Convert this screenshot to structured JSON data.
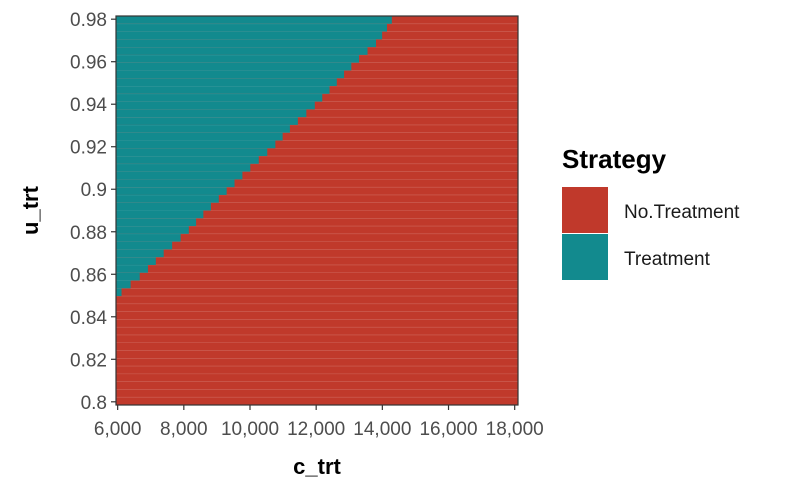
{
  "chart_data": {
    "type": "heatmap",
    "xlabel": "c_trt",
    "ylabel": "u_trt",
    "xlim": [
      6000,
      18000
    ],
    "ylim": [
      0.8,
      0.98
    ],
    "x_ticks": [
      {
        "value": 6000,
        "label": "6,000"
      },
      {
        "value": 8000,
        "label": "8,000"
      },
      {
        "value": 10000,
        "label": "10,000"
      },
      {
        "value": 12000,
        "label": "12,000"
      },
      {
        "value": 14000,
        "label": "14,000"
      },
      {
        "value": 16000,
        "label": "16,000"
      },
      {
        "value": 18000,
        "label": "18,000"
      }
    ],
    "y_ticks": [
      {
        "value": 0.8,
        "label": "0.8"
      },
      {
        "value": 0.82,
        "label": "0.82"
      },
      {
        "value": 0.84,
        "label": "0.84"
      },
      {
        "value": 0.86,
        "label": "0.86"
      },
      {
        "value": 0.88,
        "label": "0.88"
      },
      {
        "value": 0.9,
        "label": "0.9"
      },
      {
        "value": 0.92,
        "label": "0.92"
      },
      {
        "value": 0.94,
        "label": "0.94"
      },
      {
        "value": 0.96,
        "label": "0.96"
      },
      {
        "value": 0.98,
        "label": "0.98"
      }
    ],
    "legend": {
      "title": "Strategy",
      "position": "right",
      "entries": [
        {
          "label": "No.Treatment",
          "color": "#c0392b"
        },
        {
          "label": "Treatment",
          "color": "#128a8e"
        }
      ]
    },
    "boundary": {
      "description": "Treatment is optimal where c_trt is below the threshold for a given u_trt; otherwise No.Treatment",
      "u_trt": [
        0.85,
        0.86,
        0.87,
        0.88,
        0.89,
        0.9,
        0.91,
        0.92,
        0.93,
        0.94,
        0.95,
        0.96,
        0.97,
        0.98
      ],
      "c_trt_threshold": [
        6000,
        6750,
        7400,
        8100,
        8700,
        9350,
        10000,
        10700,
        11300,
        12000,
        12600,
        13200,
        13900,
        14300
      ]
    },
    "grid": false
  }
}
